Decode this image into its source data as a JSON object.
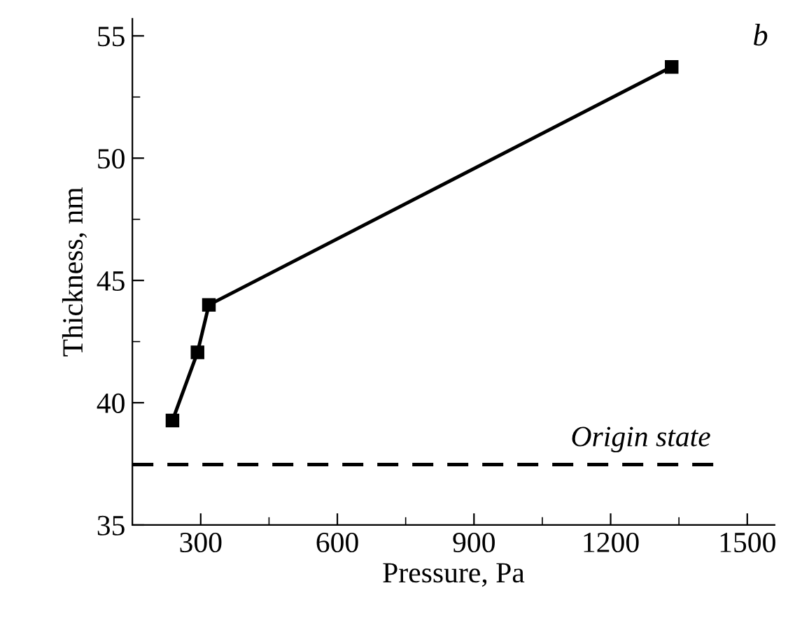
{
  "chart_data": {
    "type": "line",
    "xlabel": "Pressure, Pa",
    "ylabel": "Thickness, nm",
    "annotations": [
      "b"
    ],
    "x": [
      238,
      293,
      318,
      1334
    ],
    "series": [
      {
        "color": "#000000",
        "values": [
          39.27,
          42.06,
          44.0,
          53.73
        ]
      }
    ],
    "marker": "square",
    "line_style": "solid",
    "xlim": [
      150,
      1560
    ],
    "ylim": [
      35,
      55.7
    ],
    "xticks": [
      300,
      600,
      900,
      1200,
      1500
    ],
    "yticks": [
      35,
      40,
      45,
      50,
      55
    ],
    "ref_lines": [
      {
        "axis": "y",
        "value": 37.47,
        "label": "Origin state",
        "color": "#000000",
        "line_style": "dashed"
      }
    ],
    "grid": false,
    "legend": false
  }
}
